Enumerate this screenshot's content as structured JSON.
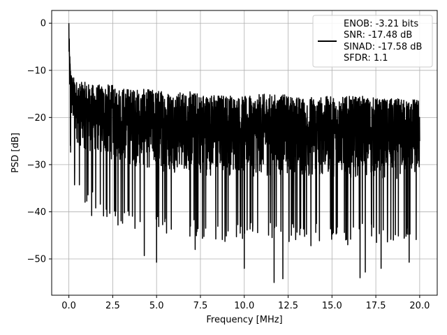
{
  "chart_data": {
    "type": "line",
    "title": "",
    "xlabel": "Frequency [MHz]",
    "ylabel": "PSD [dB]",
    "xlim": [
      -0.98,
      21.0
    ],
    "ylim": [
      -57.7,
      2.7
    ],
    "grid": true,
    "x_ticks": [
      "0.0",
      "2.5",
      "5.0",
      "7.5",
      "10.0",
      "12.5",
      "15.0",
      "17.5",
      "20.0"
    ],
    "x_tick_values": [
      0,
      2.5,
      5,
      7.5,
      10,
      12.5,
      15,
      17.5,
      20
    ],
    "y_ticks": [
      "0",
      "−10",
      "−20",
      "−30",
      "−40",
      "−50"
    ],
    "y_tick_values": [
      0,
      -10,
      -20,
      -30,
      -40,
      -50
    ],
    "legend_position": "upper-right",
    "legend_lines": [
      "ENOB: -3.21 bits",
      "SNR: -17.48 dB",
      "SINAD: -17.58 dB",
      "SFDR: 1.1"
    ],
    "series_color": "#000000",
    "series": [
      {
        "x": [
          0.0,
          0.02,
          0.05,
          0.08,
          0.1,
          0.15,
          0.2,
          0.3,
          0.4,
          0.5,
          0.6,
          0.75,
          1.0,
          1.25,
          1.5,
          2.0,
          2.5,
          3.0,
          4.0,
          5.0,
          6.0,
          7.0,
          8.0,
          9.0,
          10.0,
          11.0,
          12.0,
          13.0,
          14.0,
          15.0,
          16.0,
          17.0,
          18.0,
          19.0,
          20.0
        ],
        "envelope_max": [
          0.0,
          -3.0,
          -6.0,
          -8.0,
          -9.0,
          -10.5,
          -11.0,
          -11.5,
          -12.0,
          -12.2,
          -12.5,
          -12.5,
          -12.5,
          -13.0,
          -13.0,
          -13.0,
          -13.0,
          -13.5,
          -14.0,
          -14.0,
          -14.5,
          -14.5,
          -15.0,
          -15.0,
          -15.5,
          -15.0,
          -15.0,
          -15.5,
          -15.5,
          -15.5,
          -15.5,
          -15.5,
          -16.0,
          -16.0,
          -16.0
        ],
        "envelope_min": [
          -12.0,
          -18.0,
          -22.0,
          -25.0,
          -25.0,
          -27.0,
          -28.0,
          -30.0,
          -32.0,
          -33.0,
          -34.0,
          -34.5,
          -35.0,
          -35.5,
          -36.0,
          -37.0,
          -38.0,
          -38.5,
          -40.0,
          -41.0,
          -41.0,
          -41.5,
          -42.0,
          -42.0,
          -42.0,
          -42.0,
          -42.5,
          -42.5,
          -42.5,
          -42.0,
          -42.0,
          -42.5,
          -42.5,
          -42.5,
          -42.5
        ],
        "dips": [
          {
            "x": 0.6,
            "y": -34.3
          },
          {
            "x": 1.3,
            "y": -40.8
          },
          {
            "x": 2.8,
            "y": -42.8
          },
          {
            "x": 4.3,
            "y": -49.3
          },
          {
            "x": 5.0,
            "y": -50.7
          },
          {
            "x": 7.2,
            "y": -48.0
          },
          {
            "x": 8.9,
            "y": -46.3
          },
          {
            "x": 10.0,
            "y": -52.0
          },
          {
            "x": 11.7,
            "y": -55.0
          },
          {
            "x": 12.2,
            "y": -54.2
          },
          {
            "x": 13.8,
            "y": -47.2
          },
          {
            "x": 15.9,
            "y": -47.0
          },
          {
            "x": 16.6,
            "y": -54.0
          },
          {
            "x": 16.9,
            "y": -52.8
          },
          {
            "x": 17.8,
            "y": -52.0
          },
          {
            "x": 19.4,
            "y": -50.7
          }
        ]
      }
    ]
  }
}
